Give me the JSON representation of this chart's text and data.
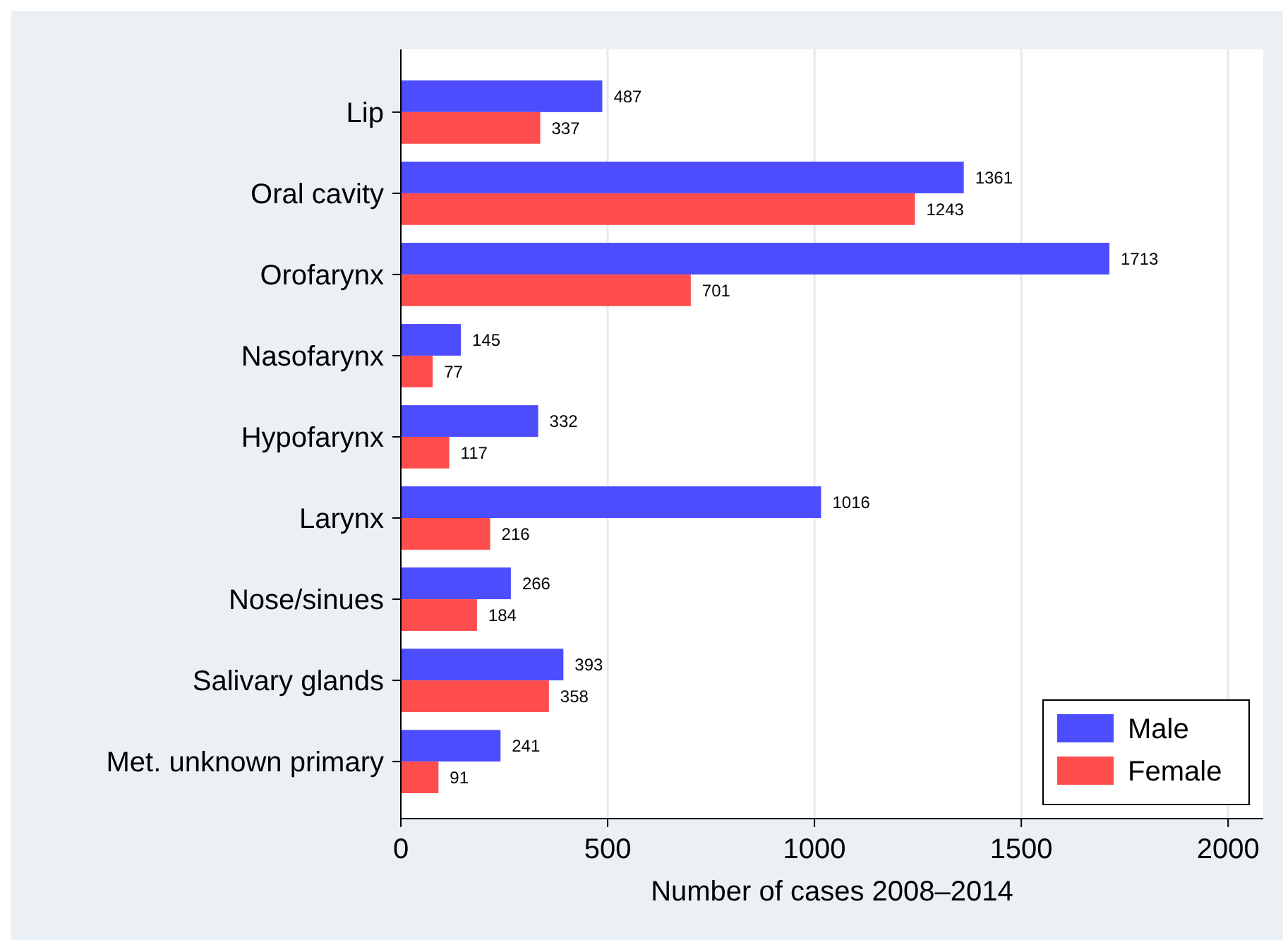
{
  "chart_data": {
    "type": "bar",
    "orientation": "horizontal",
    "xlabel": "Number of cases 2008–2014",
    "categories": [
      "Lip",
      "Oral cavity",
      "Orofarynx",
      "Nasofarynx",
      "Hypofarynx",
      "Larynx",
      "Nose/sinues",
      "Salivary glands",
      "Met. unknown primary"
    ],
    "series": [
      {
        "name": "Male",
        "color": "#4d4dff",
        "values": [
          487,
          1361,
          1713,
          145,
          332,
          1016,
          266,
          393,
          241
        ]
      },
      {
        "name": "Female",
        "color": "#ff4d4d",
        "values": [
          337,
          1243,
          701,
          77,
          117,
          216,
          184,
          358,
          91
        ]
      }
    ],
    "xlim": [
      0,
      2085
    ],
    "xticks": [
      0,
      500,
      1000,
      1500,
      2000
    ],
    "grid": "x",
    "legend": "bottom right",
    "data_labels": true
  }
}
